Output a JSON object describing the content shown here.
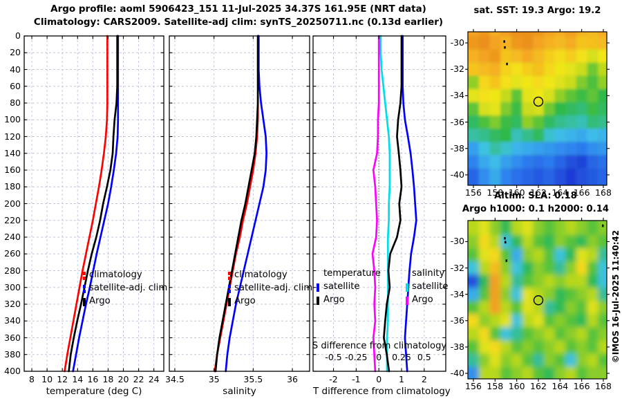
{
  "header": {
    "line1": "Argo profile: aoml 5906423_151 11-Jul-2025 34.37S 161.95E (NRT data)",
    "line2": "Climatology: CARS2009. Satellite-adj clim: synTS_20250711.nc (0.13d earlier)"
  },
  "footer": {
    "copyright": "©IMOS 16-Jul-2025 11:40:42"
  },
  "depth_ticks": [
    0,
    20,
    40,
    60,
    80,
    100,
    120,
    140,
    160,
    180,
    200,
    220,
    240,
    260,
    280,
    300,
    320,
    340,
    360,
    380,
    400
  ],
  "chart_data": [
    {
      "type": "line",
      "id": "temperature-profile",
      "xlabel": "temperature (deg C)",
      "xticks": [
        8,
        10,
        12,
        14,
        16,
        18,
        20,
        22,
        24
      ],
      "xtick_labels": [
        "8",
        "10",
        "12",
        "14",
        "16",
        "18",
        "20",
        "22",
        "24"
      ],
      "xlim": [
        7.0,
        25.3
      ],
      "ylim": [
        0,
        400
      ],
      "depths": [
        0,
        20,
        40,
        60,
        80,
        100,
        120,
        140,
        160,
        180,
        200,
        220,
        240,
        260,
        280,
        300,
        320,
        340,
        360,
        380,
        400
      ],
      "series": [
        {
          "name": "climatology",
          "color": "#ff0000",
          "legend_dashed": true,
          "values": [
            17.9,
            17.9,
            17.9,
            17.9,
            17.9,
            17.85,
            17.7,
            17.45,
            17.15,
            16.8,
            16.4,
            16.0,
            15.55,
            15.1,
            14.65,
            14.25,
            13.85,
            13.45,
            13.05,
            12.65,
            12.3
          ]
        },
        {
          "name": "satellite-adj. clim",
          "color": "#0000ff",
          "legend_dashed": true,
          "values": [
            19.3,
            19.3,
            19.3,
            19.3,
            19.3,
            19.3,
            19.25,
            19.05,
            18.75,
            18.4,
            18.0,
            17.5,
            17.0,
            16.5,
            16.05,
            15.6,
            15.1,
            14.65,
            14.2,
            13.8,
            13.4
          ]
        },
        {
          "name": "Argo",
          "color": "#000000",
          "legend_dashed": false,
          "values": [
            19.2,
            19.2,
            19.2,
            19.2,
            19.1,
            18.85,
            18.7,
            18.6,
            18.3,
            17.85,
            17.35,
            16.95,
            16.45,
            15.85,
            15.35,
            14.9,
            14.45,
            13.95,
            13.5,
            13.1,
            12.85
          ]
        }
      ]
    },
    {
      "type": "line",
      "id": "salinity-profile",
      "xlabel": "salinity",
      "xticks": [
        34.5,
        35,
        35.5,
        36
      ],
      "xtick_labels": [
        "34.5",
        "35",
        "35.5",
        "36"
      ],
      "xlim": [
        34.43,
        36.22
      ],
      "ylim": [
        0,
        400
      ],
      "depths": [
        0,
        20,
        40,
        60,
        80,
        100,
        120,
        140,
        160,
        180,
        200,
        220,
        240,
        260,
        280,
        300,
        320,
        340,
        360,
        380,
        400
      ],
      "series": [
        {
          "name": "climatology",
          "color": "#ff0000",
          "legend_dashed": true,
          "values": [
            35.56,
            35.56,
            35.56,
            35.56,
            35.56,
            35.56,
            35.55,
            35.53,
            35.5,
            35.46,
            35.42,
            35.37,
            35.33,
            35.28,
            35.24,
            35.2,
            35.16,
            35.12,
            35.08,
            35.04,
            35.01
          ]
        },
        {
          "name": "satellite-adj. clim",
          "color": "#0000ff",
          "legend_dashed": true,
          "values": [
            35.57,
            35.57,
            35.57,
            35.58,
            35.6,
            35.63,
            35.66,
            35.67,
            35.66,
            35.63,
            35.58,
            35.53,
            35.48,
            35.43,
            35.38,
            35.33,
            35.28,
            35.24,
            35.2,
            35.17,
            35.15
          ]
        },
        {
          "name": "Argo",
          "color": "#000000",
          "legend_dashed": false,
          "values": [
            35.56,
            35.56,
            35.56,
            35.56,
            35.56,
            35.55,
            35.54,
            35.52,
            35.48,
            35.44,
            35.4,
            35.35,
            35.31,
            35.27,
            35.23,
            35.19,
            35.15,
            35.11,
            35.07,
            35.04,
            35.02
          ]
        }
      ]
    },
    {
      "type": "line",
      "id": "difference-profile",
      "t_axis": {
        "label": "T difference from climatology",
        "ticks": [
          -2,
          -1,
          0,
          1,
          2
        ],
        "tick_labels": [
          "-2",
          "-1",
          "0",
          "1",
          "2"
        ],
        "lim": [
          -2.9,
          2.95
        ]
      },
      "s_axis": {
        "label": "S difference from climatology",
        "ticks": [
          -0.5,
          -0.25,
          0,
          0.25,
          0.5
        ],
        "tick_labels": [
          "-0.5",
          "-0.25",
          "0",
          "0.25",
          "0.5"
        ],
        "lim": [
          -0.725,
          0.7375
        ]
      },
      "ylim": [
        0,
        400
      ],
      "depths": [
        0,
        20,
        40,
        60,
        80,
        100,
        120,
        140,
        160,
        180,
        200,
        220,
        240,
        260,
        280,
        300,
        320,
        340,
        360,
        380,
        400
      ],
      "legend_temperature": {
        "title": "temperature",
        "entries": [
          {
            "name": "satellite",
            "color": "#0000ff"
          },
          {
            "name": "Argo",
            "color": "#000000"
          }
        ]
      },
      "legend_salinity": {
        "title": "salinity",
        "entries": [
          {
            "name": "satellite",
            "color": "#00dde8"
          },
          {
            "name": "Argo",
            "color": "#ff00ff"
          }
        ]
      },
      "series": [
        {
          "name": "satellite S diff",
          "axis": "s",
          "color": "#00dde8",
          "values": [
            0.02,
            0.02,
            0.03,
            0.05,
            0.07,
            0.09,
            0.11,
            0.12,
            0.12,
            0.12,
            0.11,
            0.11,
            0.1,
            0.1,
            0.1,
            0.1,
            0.1,
            0.1,
            0.09,
            0.09,
            0.09
          ]
        },
        {
          "name": "Argo S diff",
          "axis": "s",
          "color": "#ff00ff",
          "values": [
            0.0,
            0.0,
            0.0,
            0.0,
            0.0,
            -0.01,
            -0.01,
            -0.02,
            -0.06,
            -0.04,
            -0.03,
            -0.02,
            -0.03,
            -0.07,
            -0.05,
            -0.04,
            -0.05,
            -0.04,
            -0.06,
            -0.05,
            -0.04
          ]
        },
        {
          "name": "satellite T diff",
          "axis": "t",
          "color": "#0000ff",
          "values": [
            1.05,
            1.05,
            1.05,
            1.05,
            1.08,
            1.15,
            1.28,
            1.4,
            1.48,
            1.55,
            1.6,
            1.65,
            1.55,
            1.42,
            1.35,
            1.3,
            1.25,
            1.2,
            1.15,
            1.2,
            1.25
          ]
        },
        {
          "name": "Argo T diff",
          "axis": "t",
          "color": "#000000",
          "values": [
            1.0,
            1.0,
            1.0,
            1.0,
            0.95,
            0.85,
            0.8,
            0.88,
            0.95,
            1.0,
            0.9,
            0.95,
            0.8,
            0.5,
            0.42,
            0.48,
            0.35,
            0.28,
            0.22,
            0.35,
            0.45
          ]
        }
      ]
    },
    {
      "type": "heatmap",
      "id": "sst-map",
      "title": "sat. SST: 19.3 Argo: 19.2",
      "lon_ticks": [
        156,
        158,
        160,
        162,
        164,
        166,
        168
      ],
      "lat_ticks": [
        -30,
        -32,
        -34,
        -36,
        -38,
        -40
      ],
      "lonlim": [
        155.49,
        168.32
      ],
      "latlim": [
        -29.16,
        -40.79
      ],
      "value_range": [
        12,
        21.8
      ],
      "lons": [
        156,
        157,
        158,
        159,
        160,
        161,
        162,
        163,
        164,
        165,
        166,
        167,
        168
      ],
      "lats": [
        -29,
        -30,
        -31,
        -32,
        -33,
        -34,
        -35,
        -36,
        -37,
        -38,
        -39,
        -40
      ],
      "grid": [
        [
          20.5,
          20.8,
          20.3,
          20.6,
          21,
          21,
          20.8,
          20.5,
          20.3,
          20.6,
          20.2,
          20,
          20.3
        ],
        [
          20.8,
          21,
          20.5,
          20.2,
          20.8,
          21,
          20.5,
          20.2,
          20,
          20.3,
          19.8,
          19.9,
          20
        ],
        [
          20.2,
          20.5,
          20.8,
          19.8,
          20,
          20.4,
          20,
          19.6,
          19.3,
          19.6,
          19.2,
          18.6,
          19
        ],
        [
          19.8,
          20,
          20.2,
          19.5,
          19.2,
          19.6,
          19.9,
          19.4,
          19,
          18.8,
          18.4,
          17.2,
          18.2
        ],
        [
          17.6,
          19.4,
          19.8,
          19.2,
          18.8,
          19,
          19.3,
          19,
          18.7,
          18.4,
          17.4,
          16.8,
          17.6
        ],
        [
          18.8,
          19.2,
          19,
          18.3,
          17,
          18.8,
          19,
          18.6,
          17.6,
          17,
          16.6,
          17,
          16.4
        ],
        [
          17,
          18.6,
          18.8,
          17.4,
          16.6,
          18.4,
          18.6,
          17.2,
          16.4,
          16.2,
          16,
          16.6,
          16.2
        ],
        [
          16.2,
          16.8,
          17.4,
          16.6,
          16.2,
          17.6,
          17,
          16.2,
          15.8,
          15.6,
          15.4,
          16,
          15.8
        ],
        [
          15.6,
          15.8,
          16.2,
          16.4,
          15.4,
          15.8,
          16.2,
          15.2,
          14.8,
          14.6,
          14.4,
          14.8,
          14.6
        ],
        [
          14.2,
          15,
          15.6,
          15.2,
          14.6,
          14.4,
          14.2,
          14,
          13.8,
          13.6,
          13.4,
          13.8,
          14
        ],
        [
          13.6,
          14.4,
          14.8,
          14.2,
          13.8,
          13.4,
          13.2,
          13.4,
          13,
          12.6,
          12.4,
          13,
          13.2
        ],
        [
          13,
          13.8,
          14.4,
          13.6,
          13.2,
          13,
          12.8,
          13,
          12.6,
          12.2,
          12.6,
          12.8,
          13
        ]
      ],
      "float_marker": {
        "lon": 162,
        "lat": -34.45
      },
      "land_marks": [
        [
          158.85,
          -29.9
        ],
        [
          158.9,
          -30.35
        ],
        [
          159.1,
          -31.6
        ],
        [
          167.95,
          -28.75
        ]
      ]
    },
    {
      "type": "heatmap",
      "id": "sla-map",
      "title_line1": "Altim. SLA: 0.18",
      "title_line2": "Argo h1000: 0.1 h2000: 0.14",
      "lon_ticks": [
        156,
        158,
        160,
        162,
        164,
        166,
        168
      ],
      "lat_ticks": [
        -30,
        -32,
        -34,
        -36,
        -38,
        -40
      ],
      "lonlim": [
        155.49,
        168.32
      ],
      "latlim": [
        -28.4,
        -40.42
      ],
      "value_range": [
        -0.4,
        0.4
      ],
      "lons": [
        156,
        157,
        158,
        159,
        160,
        161,
        162,
        163,
        164,
        165,
        166,
        167,
        168
      ],
      "lats": [
        -29,
        -30,
        -31,
        -32,
        -33,
        -34,
        -35,
        -36,
        -37,
        -38,
        -39,
        -40
      ],
      "grid": [
        [
          0.1,
          0.15,
          0.05,
          -0.05,
          0.1,
          0.15,
          0.05,
          0,
          0.05,
          0.1,
          0.05,
          0,
          0.05
        ],
        [
          0.05,
          0.2,
          0.1,
          -0.15,
          -0.05,
          0.1,
          0,
          -0.05,
          0.05,
          0,
          -0.05,
          0.05,
          0
        ],
        [
          0,
          0.15,
          0.2,
          0,
          -0.2,
          0.05,
          0.1,
          0,
          -0.15,
          -0.05,
          0.15,
          0.1,
          -0.1
        ],
        [
          -0.15,
          0.1,
          0.25,
          0.05,
          -0.15,
          -0.05,
          0.05,
          0,
          -0.1,
          0.05,
          0.2,
          0,
          -0.15
        ],
        [
          -0.35,
          -0.05,
          0.3,
          0.1,
          -0.1,
          0,
          0.05,
          0.1,
          0.05,
          0.1,
          0.1,
          -0.05,
          -0.15
        ],
        [
          -0.2,
          0,
          0.3,
          0.05,
          -0.15,
          0.15,
          0.1,
          0.05,
          -0.05,
          0,
          0.05,
          0.1,
          -0.1
        ],
        [
          0,
          0.1,
          0.3,
          0.1,
          0,
          0.15,
          0.1,
          -0.1,
          -0.05,
          0.05,
          0,
          0.15,
          0.05
        ],
        [
          0.2,
          0.05,
          0.1,
          0.15,
          -0.15,
          0.1,
          0.15,
          0,
          0.05,
          0,
          -0.05,
          0.1,
          0
        ],
        [
          0.1,
          0.2,
          0,
          -0.15,
          -0.1,
          0,
          0.05,
          0.1,
          0,
          0.05,
          0.1,
          0,
          0.05
        ],
        [
          0,
          0.15,
          0.2,
          0.1,
          0,
          0.05,
          0,
          0.05,
          0.1,
          0,
          0.05,
          0,
          0.1
        ],
        [
          -0.1,
          0.05,
          0.15,
          0.05,
          0.1,
          0,
          -0.1,
          0.05,
          0,
          -0.15,
          0.05,
          0.1,
          0
        ],
        [
          -0.25,
          0.1,
          0.1,
          0,
          0.05,
          0.1,
          0,
          -0.05,
          0.05,
          0.1,
          0,
          0.05,
          0.05
        ]
      ],
      "float_marker": {
        "lon": 162,
        "lat": -34.45
      },
      "land_marks": [
        [
          158.9,
          -29.75
        ],
        [
          158.95,
          -30.05
        ],
        [
          159.05,
          -31.45
        ],
        [
          167.95,
          -28.8
        ]
      ]
    }
  ]
}
